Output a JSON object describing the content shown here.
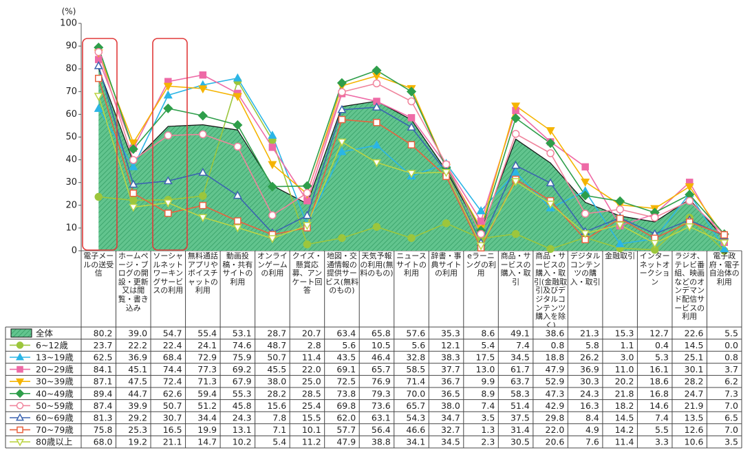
{
  "chart_data": {
    "type": "line",
    "y_label": "(%)",
    "ylim": [
      0,
      100
    ],
    "yticks": [
      0,
      10,
      20,
      30,
      40,
      50,
      60,
      70,
      80,
      90,
      100
    ],
    "categories": [
      "電子メールの送受信",
      "ホームページ・ブログの開設・更新又は閲覧・書き込み",
      "ソーシャルネットワーキングサービスの利用",
      "無料通話アプリやボイスチャットの利用",
      "動画投稿・共有サイトの利用",
      "オンラインゲームの利用",
      "クイズ・懸賞応募、アンケート回答",
      "地図・交通情報の提供サービス(無料のもの)",
      "天気予報の利用(無料のもの)",
      "ニュースサイトの利用",
      "辞書・事典サイトの利用",
      "eラーニングの利用",
      "商品・サービスの購入・取引",
      "商品・サービスの購入・取引(金融取引及びデジタルコンテンツ購入を除く)",
      "デジタルコンテンツの購入・取引",
      "金融取引",
      "インターネットオークション",
      "ラジオ、テレビ番組、映画などのオンデマンド配信サービスの利用",
      "電子政府・電子自治体の利用"
    ],
    "series": [
      {
        "name": "全体",
        "style": "area",
        "color": "#5cc28a",
        "values": [
          80.2,
          39.0,
          54.7,
          55.4,
          53.1,
          28.7,
          20.7,
          63.4,
          65.8,
          57.6,
          35.3,
          8.6,
          49.1,
          38.6,
          21.3,
          15.3,
          12.7,
          22.6,
          5.5
        ],
        "value_labels": [
          "80.2",
          "39.0",
          "54.7",
          "55.4",
          "53.1",
          "28.7",
          "20.7",
          "63.4",
          "65.8",
          "57.6",
          "35.3",
          "8.6",
          "49.1",
          "38.6",
          "21.3",
          "15.3",
          "12.7",
          "22.6",
          "5.5"
        ]
      },
      {
        "name": "6~12歳",
        "marker": "circle",
        "filled": true,
        "color": "#9cc63c",
        "values": [
          23.7,
          22.2,
          22.4,
          24.1,
          74.6,
          48.7,
          2.8,
          5.6,
          10.5,
          5.6,
          12.1,
          5.4,
          7.4,
          0.8,
          5.8,
          1.1,
          0.4,
          14.5,
          0.0
        ],
        "value_labels": [
          "23.7",
          "22.2",
          "22.4",
          "24.1",
          "74.6",
          "48.7",
          "2.8",
          "5.6",
          "10.5",
          "5.6",
          "12.1",
          "5.4",
          "7.4",
          "0.8",
          "5.8",
          "1.1",
          "0.4",
          "14.5",
          "0.0"
        ]
      },
      {
        "name": "13~19歳",
        "marker": "triangle",
        "filled": true,
        "color": "#2bb5e6",
        "values": [
          62.5,
          36.9,
          68.4,
          72.9,
          75.9,
          50.7,
          11.4,
          43.5,
          46.4,
          32.8,
          38.3,
          17.5,
          34.5,
          18.8,
          26.2,
          3.0,
          5.3,
          25.1,
          0.8
        ],
        "value_labels": [
          "62.5",
          "36.9",
          "68.4",
          "72.9",
          "75.9",
          "50.7",
          "11.4",
          "43.5",
          "46.4",
          "32.8",
          "38.3",
          "17.5",
          "34.5",
          "18.8",
          "26.2",
          "3.0",
          "5.3",
          "25.1",
          "0.8"
        ]
      },
      {
        "name": "20~29歳",
        "marker": "square",
        "filled": true,
        "color": "#ee6aa6",
        "values": [
          84.1,
          45.1,
          74.4,
          77.3,
          69.2,
          45.5,
          22.0,
          69.1,
          65.7,
          58.5,
          37.7,
          13.0,
          61.7,
          47.9,
          36.9,
          11.0,
          16.1,
          30.1,
          3.7
        ],
        "value_labels": [
          "84.1",
          "45.1",
          "74.4",
          "77.3",
          "69.2",
          "45.5",
          "22.0",
          "69.1",
          "65.7",
          "58.5",
          "37.7",
          "13.0",
          "61.7",
          "47.9",
          "36.9",
          "11.0",
          "16.1",
          "30.1",
          "3.7"
        ]
      },
      {
        "name": "30~39歳",
        "marker": "triangle-down",
        "filled": true,
        "color": "#f5b400",
        "values": [
          87.1,
          47.5,
          72.4,
          71.3,
          67.9,
          38.0,
          25.0,
          72.5,
          76.9,
          71.4,
          36.7,
          9.9,
          63.7,
          52.9,
          30.3,
          20.2,
          18.6,
          28.2,
          6.2
        ],
        "value_labels": [
          "87.1",
          "47.5",
          "72.4",
          "71.3",
          "67.9",
          "38.0",
          "25.0",
          "72.5",
          "76.9",
          "71.4",
          "36.7",
          "9.9",
          "63.7",
          "52.9",
          "30.3",
          "20.2",
          "18.6",
          "28.2",
          "6.2"
        ]
      },
      {
        "name": "40~49歳",
        "marker": "diamond",
        "filled": true,
        "color": "#2e9e4a",
        "values": [
          89.4,
          44.7,
          62.6,
          59.4,
          55.3,
          28.2,
          28.5,
          73.8,
          79.3,
          70.0,
          36.5,
          8.9,
          58.3,
          47.3,
          24.3,
          21.8,
          16.8,
          24.7,
          7.3
        ],
        "value_labels": [
          "89.4",
          "44.7",
          "62.6",
          "59.4",
          "55.3",
          "28.2",
          "28.5",
          "73.8",
          "79.3",
          "70.0",
          "36.5",
          "8.9",
          "58.3",
          "47.3",
          "24.3",
          "21.8",
          "16.8",
          "24.7",
          "7.3"
        ]
      },
      {
        "name": "50~59歳",
        "marker": "circle",
        "filled": false,
        "color": "#f0849c",
        "values": [
          87.4,
          39.9,
          50.7,
          51.2,
          45.8,
          15.6,
          25.4,
          69.8,
          73.6,
          65.7,
          38.0,
          7.4,
          51.4,
          42.9,
          16.3,
          18.2,
          14.6,
          21.9,
          7.0
        ],
        "value_labels": [
          "87.4",
          "39.9",
          "50.7",
          "51.2",
          "45.8",
          "15.6",
          "25.4",
          "69.8",
          "73.6",
          "65.7",
          "38.0",
          "7.4",
          "51.4",
          "42.9",
          "16.3",
          "18.2",
          "14.6",
          "21.9",
          "7.0"
        ]
      },
      {
        "name": "60~69歳",
        "marker": "triangle",
        "filled": false,
        "color": "#3b64b0",
        "values": [
          81.3,
          29.2,
          30.7,
          34.4,
          24.3,
          7.8,
          15.5,
          62.0,
          63.1,
          54.3,
          34.7,
          3.5,
          37.5,
          29.8,
          8.4,
          14.5,
          7.4,
          13.5,
          6.5
        ],
        "value_labels": [
          "81.3",
          "29.2",
          "30.7",
          "34.4",
          "24.3",
          "7.8",
          "15.5",
          "62.0",
          "63.1",
          "54.3",
          "34.7",
          "3.5",
          "37.5",
          "29.8",
          "8.4",
          "14.5",
          "7.4",
          "13.5",
          "6.5"
        ]
      },
      {
        "name": "70~79歳",
        "marker": "square",
        "filled": false,
        "color": "#e8623f",
        "values": [
          75.8,
          25.3,
          16.5,
          19.9,
          13.1,
          7.1,
          10.1,
          57.7,
          56.4,
          46.6,
          32.7,
          1.3,
          31.4,
          22.0,
          4.9,
          14.2,
          5.5,
          12.6,
          7.0
        ],
        "value_labels": [
          "75.8",
          "25.3",
          "16.5",
          "19.9",
          "13.1",
          "7.1",
          "10.1",
          "57.7",
          "56.4",
          "46.6",
          "32.7",
          "1.3",
          "31.4",
          "22.0",
          "4.9",
          "14.2",
          "5.5",
          "12.6",
          "7.0"
        ]
      },
      {
        "name": "80歳以上",
        "marker": "triangle-down",
        "filled": false,
        "color": "#bcd444",
        "values": [
          68.0,
          19.2,
          21.1,
          14.7,
          10.2,
          5.4,
          11.2,
          47.9,
          38.8,
          34.1,
          34.5,
          2.3,
          30.5,
          20.6,
          7.6,
          11.4,
          3.3,
          10.6,
          3.5
        ],
        "value_labels": [
          "68.0",
          "19.2",
          "21.1",
          "14.7",
          "10.2",
          "5.4",
          "11.2",
          "47.9",
          "38.8",
          "34.1",
          "34.5",
          "2.3",
          "30.5",
          "20.6",
          "7.6",
          "11.4",
          "3.3",
          "10.6",
          "3.5"
        ]
      }
    ]
  }
}
